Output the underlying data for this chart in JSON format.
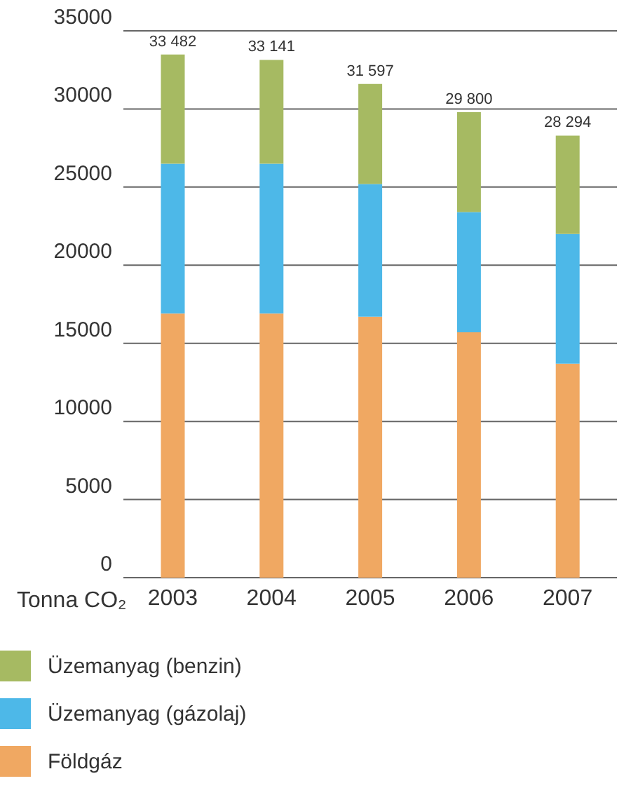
{
  "chart_data": {
    "type": "bar",
    "stacked": true,
    "ylabel": "Tonna CO₂",
    "categories": [
      "2003",
      "2004",
      "2005",
      "2006",
      "2007"
    ],
    "series": [
      {
        "name": "Földgáz",
        "color": "#f0a862",
        "values": [
          16900,
          16900,
          16700,
          15700,
          13700
        ]
      },
      {
        "name": "Üzemanyag (gázolaj)",
        "color": "#4db8e8",
        "values": [
          9600,
          9600,
          8500,
          7700,
          8300
        ]
      },
      {
        "name": "Üzemanyag (benzin)",
        "color": "#a6ba62",
        "values": [
          6982,
          6641,
          6397,
          6400,
          6294
        ]
      }
    ],
    "totals": [
      "33 482",
      "33 141",
      "31 597",
      "29 800",
      "28 294"
    ],
    "ylim": [
      0,
      35000
    ],
    "yticks": [
      0,
      5000,
      10000,
      15000,
      20000,
      25000,
      30000,
      35000
    ],
    "grid": "y",
    "legend": "bottom"
  }
}
